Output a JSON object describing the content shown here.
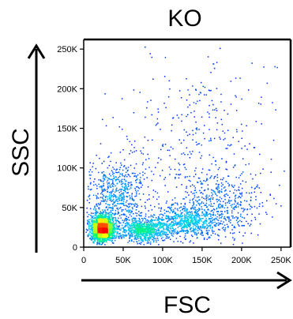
{
  "chart_data": {
    "type": "scatter",
    "title": "KO",
    "xlabel": "FSC",
    "ylabel": "SSC",
    "xlim": [
      0,
      262144
    ],
    "ylim": [
      0,
      262144
    ],
    "x_ticks": [
      0,
      50000,
      100000,
      150000,
      200000,
      250000
    ],
    "x_tick_labels": [
      "0",
      "50K",
      "100K",
      "150K",
      "200K",
      "250K"
    ],
    "y_ticks": [
      0,
      50000,
      100000,
      150000,
      200000,
      250000
    ],
    "y_tick_labels": [
      "0",
      "50K",
      "100K",
      "150K",
      "200K",
      "250K"
    ],
    "grid": false,
    "density_colormap": [
      "#0000ff",
      "#00c8ff",
      "#00ff66",
      "#ffff00",
      "#ff0000"
    ],
    "populations": [
      {
        "x": 24000,
        "y": 24000,
        "sx": 7000,
        "sy": 8000,
        "weight": 0.42
      },
      {
        "x": 75000,
        "y": 22000,
        "sx": 17000,
        "sy": 7000,
        "weight": 0.16
      },
      {
        "x": 130000,
        "y": 32000,
        "sx": 22000,
        "sy": 10000,
        "weight": 0.14
      },
      {
        "x": 175000,
        "y": 55000,
        "sx": 26000,
        "sy": 20000,
        "weight": 0.08
      },
      {
        "x": 40000,
        "y": 65000,
        "sx": 18000,
        "sy": 22000,
        "weight": 0.12
      },
      {
        "x": 120000,
        "y": 90000,
        "sx": 50000,
        "sy": 45000,
        "weight": 0.05
      },
      {
        "x": 160000,
        "y": 170000,
        "sx": 45000,
        "sy": 40000,
        "weight": 0.03
      }
    ]
  }
}
